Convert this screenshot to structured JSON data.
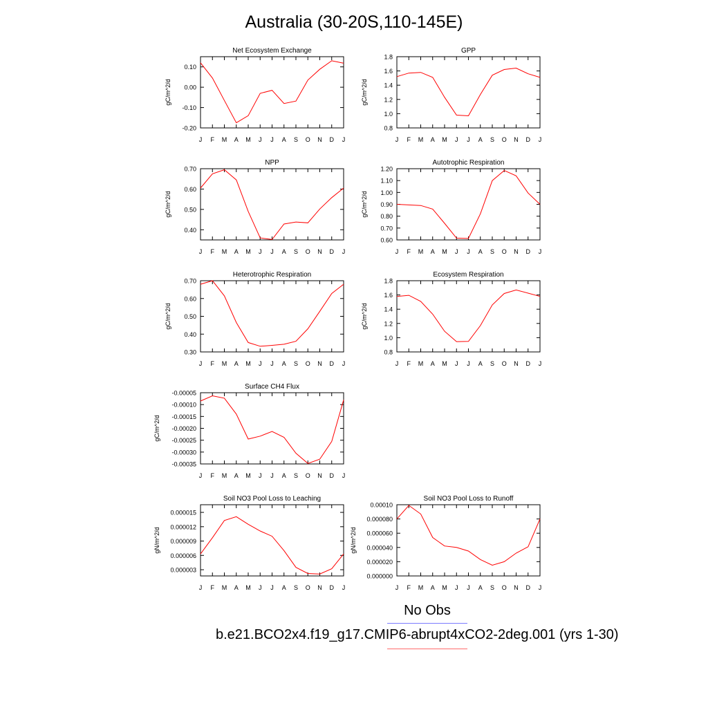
{
  "page": {
    "title": "Australia (30-20S,110-145E)"
  },
  "legend": {
    "obs_label": "No Obs",
    "obs_color": "#7b7bff",
    "model_label": "b.e21.BCO2x4.f19_g17.CMIP6-abrupt4xCO2-2deg.001 (yrs 1-30)",
    "model_color": "#ff6b6b"
  },
  "chart_data": [
    {
      "type": "line",
      "title": "Net Ecosystem Exchange",
      "ylabel": "gC/m^2/d",
      "categories": [
        "J",
        "F",
        "M",
        "A",
        "M",
        "J",
        "J",
        "A",
        "S",
        "O",
        "N",
        "D",
        "J"
      ],
      "ylim": [
        -0.2,
        0.15
      ],
      "yticks": [
        "0.10",
        "0.00",
        "-0.10",
        "-0.20"
      ],
      "series": [
        {
          "color": "#ff0000",
          "values": [
            0.12,
            0.045,
            -0.065,
            -0.175,
            -0.14,
            -0.03,
            -0.015,
            -0.08,
            -0.068,
            0.035,
            0.088,
            0.13,
            0.118
          ]
        }
      ]
    },
    {
      "type": "line",
      "title": "GPP",
      "ylabel": "gC/m^2/d",
      "categories": [
        "J",
        "F",
        "M",
        "A",
        "M",
        "J",
        "J",
        "A",
        "S",
        "O",
        "N",
        "D",
        "J"
      ],
      "ylim": [
        0.8,
        1.8
      ],
      "yticks": [
        "1.8",
        "1.6",
        "1.4",
        "1.2",
        "1.0",
        "0.8"
      ],
      "series": [
        {
          "color": "#ff0000",
          "values": [
            1.52,
            1.57,
            1.58,
            1.51,
            1.23,
            0.98,
            0.97,
            1.27,
            1.54,
            1.62,
            1.64,
            1.56,
            1.51
          ]
        }
      ]
    },
    {
      "type": "line",
      "title": "NPP",
      "ylabel": "gC/m^2/d",
      "categories": [
        "J",
        "F",
        "M",
        "A",
        "M",
        "J",
        "J",
        "A",
        "S",
        "O",
        "N",
        "D",
        "J"
      ],
      "ylim": [
        0.35,
        0.7
      ],
      "yticks": [
        "0.70",
        "0.60",
        "0.50",
        "0.40"
      ],
      "series": [
        {
          "color": "#ff0000",
          "values": [
            0.605,
            0.675,
            0.695,
            0.645,
            0.49,
            0.36,
            0.352,
            0.428,
            0.438,
            0.434,
            0.502,
            0.558,
            0.605
          ]
        }
      ]
    },
    {
      "type": "line",
      "title": "Autotrophic Respiration",
      "ylabel": "gC/m^2/d",
      "categories": [
        "J",
        "F",
        "M",
        "A",
        "M",
        "J",
        "J",
        "A",
        "S",
        "O",
        "N",
        "D",
        "J"
      ],
      "ylim": [
        0.6,
        1.2
      ],
      "yticks": [
        "1.20",
        "1.10",
        "1.00",
        "0.90",
        "0.80",
        "0.70",
        "0.60"
      ],
      "series": [
        {
          "color": "#ff0000",
          "values": [
            0.9,
            0.895,
            0.89,
            0.86,
            0.74,
            0.615,
            0.612,
            0.82,
            1.1,
            1.185,
            1.14,
            0.995,
            0.9
          ]
        }
      ]
    },
    {
      "type": "line",
      "title": "Heterotrophic Respiration",
      "ylabel": "gC/m^2/d",
      "categories": [
        "J",
        "F",
        "M",
        "A",
        "M",
        "J",
        "J",
        "A",
        "S",
        "O",
        "N",
        "D",
        "J"
      ],
      "ylim": [
        0.3,
        0.7
      ],
      "yticks": [
        "0.70",
        "0.60",
        "0.50",
        "0.40",
        "0.30"
      ],
      "series": [
        {
          "color": "#ff0000",
          "values": [
            0.68,
            0.7,
            0.615,
            0.465,
            0.353,
            0.332,
            0.337,
            0.343,
            0.36,
            0.43,
            0.528,
            0.628,
            0.68
          ]
        }
      ]
    },
    {
      "type": "line",
      "title": "Ecosystem Respiration",
      "ylabel": "gC/m^2/d",
      "categories": [
        "J",
        "F",
        "M",
        "A",
        "M",
        "J",
        "J",
        "A",
        "S",
        "O",
        "N",
        "D",
        "J"
      ],
      "ylim": [
        0.8,
        1.8
      ],
      "yticks": [
        "1.8",
        "1.6",
        "1.4",
        "1.2",
        "1.0",
        "0.8"
      ],
      "series": [
        {
          "color": "#ff0000",
          "values": [
            1.58,
            1.595,
            1.51,
            1.33,
            1.09,
            0.945,
            0.948,
            1.17,
            1.46,
            1.62,
            1.67,
            1.625,
            1.58
          ]
        }
      ]
    },
    {
      "type": "line",
      "title": "Surface CH4 Flux",
      "ylabel": "gC/m^2/d",
      "categories": [
        "J",
        "F",
        "M",
        "A",
        "M",
        "J",
        "J",
        "A",
        "S",
        "O",
        "N",
        "D",
        "J"
      ],
      "ylim": [
        -0.00035,
        -5e-05
      ],
      "yticks": [
        "-0.00005",
        "-0.00010",
        "-0.00015",
        "-0.00020",
        "-0.00025",
        "-0.00030",
        "-0.00035"
      ],
      "series": [
        {
          "color": "#ff0000",
          "values": [
            -8.5e-05,
            -6.3e-05,
            -7.3e-05,
            -0.00014,
            -0.000245,
            -0.000233,
            -0.000213,
            -0.000238,
            -0.000305,
            -0.000348,
            -0.00033,
            -0.000255,
            -8e-05
          ]
        }
      ]
    },
    {
      "type": "line",
      "title": "Soil NO3 Pool Loss to Leaching",
      "ylabel": "gN/m^2/d",
      "categories": [
        "J",
        "F",
        "M",
        "A",
        "M",
        "J",
        "J",
        "A",
        "S",
        "O",
        "N",
        "D",
        "J"
      ],
      "ylim": [
        1.7e-06,
        1.66e-05
      ],
      "yticks": [
        "0.000015",
        "0.000012",
        "0.000009",
        "0.000006",
        "0.000003"
      ],
      "series": [
        {
          "color": "#ff0000",
          "values": [
            6.3e-06,
            9.7e-06,
            1.33e-05,
            1.41e-05,
            1.25e-05,
            1.11e-05,
            1e-05,
            7e-06,
            3.5e-06,
            2.2e-06,
            2.1e-06,
            3.2e-06,
            6.3e-06
          ]
        }
      ]
    },
    {
      "type": "line",
      "title": "Soil NO3 Pool Loss to Runoff",
      "ylabel": "gN/m^2/d",
      "categories": [
        "J",
        "F",
        "M",
        "A",
        "M",
        "J",
        "J",
        "A",
        "S",
        "O",
        "N",
        "D",
        "J"
      ],
      "ylim": [
        0.0,
        0.0001
      ],
      "yticks": [
        "0.00010",
        "0.000080",
        "0.000060",
        "0.000040",
        "0.000020",
        "0.000000"
      ],
      "series": [
        {
          "color": "#ff0000",
          "values": [
            8e-05,
            9.9e-05,
            8.7e-05,
            5.4e-05,
            4.2e-05,
            4e-05,
            3.5e-05,
            2.3e-05,
            1.5e-05,
            2e-05,
            3.2e-05,
            4.1e-05,
            8e-05
          ]
        }
      ]
    }
  ]
}
